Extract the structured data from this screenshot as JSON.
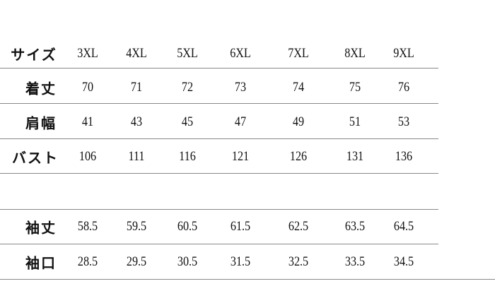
{
  "table": {
    "header": [
      "サイズ",
      "3XL",
      "4XL",
      "5XL",
      "6XL",
      "7XL",
      "8XL",
      "9XL"
    ],
    "rows": [
      [
        "着丈",
        70,
        71,
        72,
        73,
        74,
        75,
        76
      ],
      [
        "肩幅",
        41,
        43,
        45,
        47,
        49,
        51,
        53
      ],
      [
        "バスト",
        106,
        111,
        116,
        121,
        126,
        131,
        136
      ],
      [
        "袖丈",
        58.5,
        59.5,
        60.5,
        61.5,
        62.5,
        63.5,
        64.5
      ],
      [
        "袖口",
        28.5,
        29.5,
        30.5,
        31.5,
        32.5,
        33.5,
        34.5
      ]
    ]
  }
}
